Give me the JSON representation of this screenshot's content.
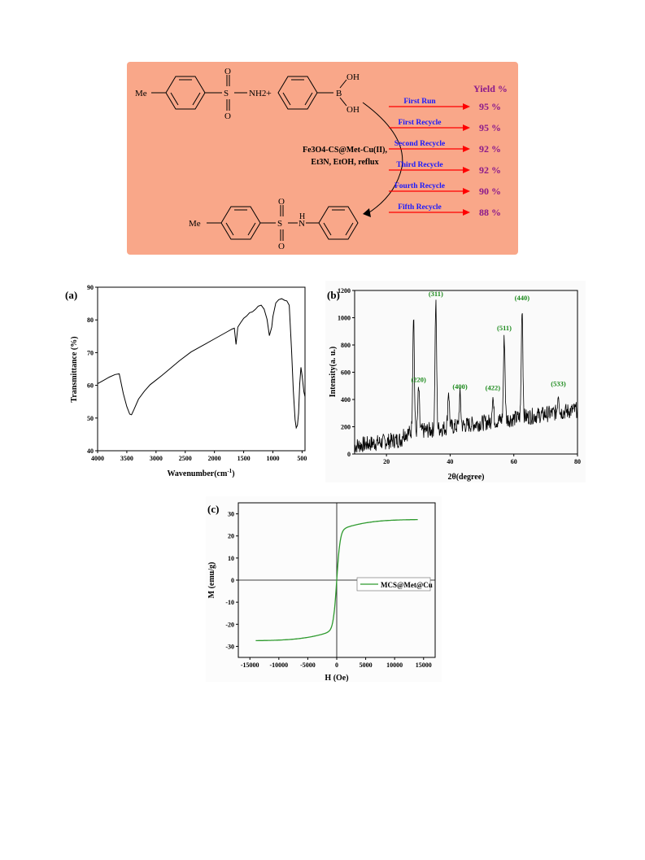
{
  "scheme": {
    "reactant1": {
      "substituent": "Me",
      "group": "NH2",
      "atoms": [
        "S",
        "O",
        "O"
      ]
    },
    "plus": "+",
    "reactant2": {
      "atoms": [
        "B",
        "OH",
        "OH"
      ]
    },
    "conditions": [
      "Fe3O4-CS@Met-Cu(II),",
      "Et3N, EtOH, reflux"
    ],
    "product": {
      "substituent": "Me",
      "atoms": [
        "S",
        "O",
        "O",
        "H",
        "N"
      ]
    },
    "yield_header": "Yield %",
    "runs": [
      {
        "label": "First Run",
        "yield": "95 %"
      },
      {
        "label": "First Recycle",
        "yield": "95 %"
      },
      {
        "label": "Second Recycle",
        "yield": "92 %"
      },
      {
        "label": "Third Recycle",
        "yield": "92 %"
      },
      {
        "label": "Fourth Recycle",
        "yield": "90 %"
      },
      {
        "label": "Fifth Recycle",
        "yield": "88 %"
      }
    ],
    "colors": {
      "background": "#f9a789",
      "run_label": "#1a1aff",
      "yield": "#8b1a8b",
      "arrow": "#ff0000"
    }
  },
  "chart_data": [
    {
      "panel": "(a)",
      "type": "line",
      "xlabel": "Wavenumber(cm",
      "xlabel_sup": "-1",
      "xlabel_close": ")",
      "ylabel": "Transmittance (%)",
      "xlim": [
        4000,
        450
      ],
      "ylim": [
        40,
        90
      ],
      "xticks": [
        4000,
        3500,
        3000,
        2500,
        2000,
        1500,
        1000,
        500
      ],
      "yticks": [
        40,
        50,
        60,
        70,
        80,
        90
      ],
      "x": [
        4000,
        3900,
        3800,
        3700,
        3630,
        3560,
        3500,
        3450,
        3420,
        3380,
        3300,
        3200,
        3100,
        3000,
        2900,
        2800,
        2600,
        2400,
        2200,
        2000,
        1800,
        1700,
        1660,
        1630,
        1600,
        1550,
        1500,
        1450,
        1400,
        1350,
        1300,
        1250,
        1200,
        1150,
        1100,
        1060,
        1020,
        1000,
        950,
        900,
        850,
        800,
        760,
        720,
        680,
        650,
        620,
        600,
        580,
        560,
        540,
        520,
        500,
        470,
        450
      ],
      "y": [
        60.5,
        61.5,
        62.5,
        63.3,
        63.5,
        57.5,
        53.5,
        51.2,
        51.0,
        52.5,
        55.8,
        58.2,
        60.2,
        61.6,
        63.0,
        64.5,
        67.5,
        70.2,
        72.2,
        74.2,
        76.2,
        77.2,
        77.5,
        72.5,
        77.8,
        79.2,
        80.5,
        81.2,
        82.2,
        82.5,
        83.2,
        84.2,
        84.5,
        83.3,
        80.2,
        75.2,
        77.8,
        81.0,
        85.2,
        86.2,
        86.5,
        86.0,
        85.8,
        84.5,
        70.5,
        58.5,
        49.5,
        47.0,
        47.8,
        51.5,
        60.5,
        65.5,
        63.0,
        58.0,
        56.5
      ]
    },
    {
      "panel": "(b)",
      "type": "line",
      "xlabel": "2θ(degree)",
      "ylabel": "Intensity(a. u.)",
      "xlim": [
        10,
        80
      ],
      "ylim": [
        0,
        1200
      ],
      "xticks": [
        20,
        40,
        60,
        80
      ],
      "yticks": [
        0,
        200,
        400,
        600,
        800,
        1000,
        1200
      ],
      "peaks": [
        {
          "x": 28.5,
          "y": 1040,
          "label": ""
        },
        {
          "x": 30.1,
          "y": 480,
          "label": "(220)"
        },
        {
          "x": 35.5,
          "y": 1110,
          "label": "(311)"
        },
        {
          "x": 39.5,
          "y": 470,
          "label": ""
        },
        {
          "x": 43.1,
          "y": 430,
          "label": "(400)"
        },
        {
          "x": 53.4,
          "y": 420,
          "label": "(422)"
        },
        {
          "x": 57.0,
          "y": 860,
          "label": "(511)"
        },
        {
          "x": 62.6,
          "y": 1080,
          "label": "(440)"
        },
        {
          "x": 74.0,
          "y": 450,
          "label": "(533)"
        }
      ],
      "label_color": "#1c8a1c"
    },
    {
      "panel": "(c)",
      "type": "line",
      "xlabel": "H (Oe)",
      "ylabel": "M (emu/g)",
      "xlim": [
        -17000,
        17000
      ],
      "ylim": [
        -35,
        35
      ],
      "xticks": [
        -15000,
        -10000,
        -5000,
        0,
        5000,
        10000,
        15000
      ],
      "yticks": [
        -30,
        -20,
        -10,
        0,
        10,
        20,
        30
      ],
      "series": [
        {
          "name": "MCS@Met@Cu",
          "color": "#2e9a2e",
          "Ms": 27.5,
          "h_max": 14000
        }
      ],
      "legend": "right"
    }
  ]
}
